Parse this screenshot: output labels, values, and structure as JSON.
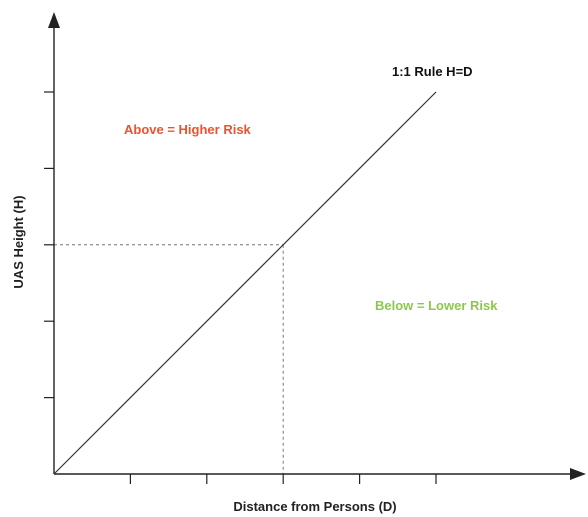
{
  "chart_data": {
    "type": "line",
    "title": "",
    "xlabel": "Distance from Persons (D)",
    "ylabel": "UAS Height (H)",
    "xlim": [
      0,
      7
    ],
    "ylim": [
      0,
      6
    ],
    "x_ticks": [
      1,
      2,
      3,
      4,
      5
    ],
    "y_ticks": [
      1,
      2,
      3,
      4,
      5
    ],
    "grid": false,
    "series": [
      {
        "name": "1:1 Rule H=D",
        "x": [
          0,
          5
        ],
        "y": [
          0,
          5
        ]
      }
    ],
    "reference_point": {
      "x": 3,
      "y": 3
    },
    "annotations": [
      {
        "text": "Above = Higher Risk",
        "color": "#e8542f"
      },
      {
        "text": "Below = Lower Risk",
        "color": "#8cc84b"
      }
    ],
    "colors": {
      "axis": "#222222",
      "line": "#333333",
      "guide": "#777777",
      "above": "#e8542f",
      "below": "#8cc84b"
    }
  }
}
